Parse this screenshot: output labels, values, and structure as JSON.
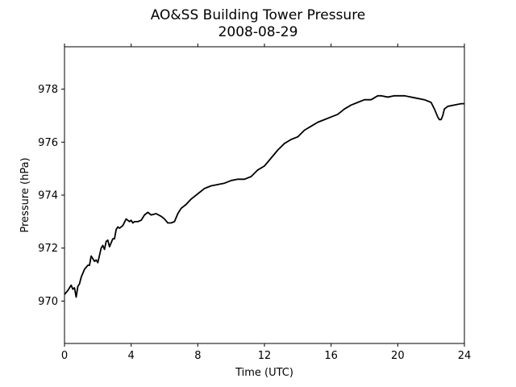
{
  "chart_data": {
    "type": "line",
    "title": "AO&SS Building Tower Pressure",
    "subtitle": "2008-08-29",
    "xlabel": "Time (UTC)",
    "ylabel": "Pressure (hPa)",
    "xlim": [
      0,
      24
    ],
    "ylim": [
      968.4,
      979.6
    ],
    "xticks": [
      0,
      4,
      8,
      12,
      16,
      20,
      24
    ],
    "yticks": [
      970,
      972,
      974,
      976,
      978
    ],
    "grid": false,
    "line_color": "#000000",
    "series": [
      {
        "x": [
          0.0,
          0.2,
          0.4,
          0.5,
          0.6,
          0.7,
          0.8,
          0.9,
          1.0,
          1.2,
          1.4,
          1.5,
          1.6,
          1.8,
          1.9,
          2.0,
          2.2,
          2.3,
          2.4,
          2.5,
          2.6,
          2.7,
          2.8,
          2.9,
          3.0,
          3.1,
          3.2,
          3.3,
          3.5,
          3.7,
          3.9,
          4.0,
          4.1,
          4.2,
          4.4,
          4.6,
          4.8,
          5.0,
          5.2,
          5.5,
          5.8,
          6.0,
          6.2,
          6.4,
          6.6,
          6.8,
          7.0,
          7.3,
          7.6,
          8.0,
          8.4,
          8.8,
          9.2,
          9.6,
          10.0,
          10.4,
          10.8,
          11.2,
          11.6,
          12.0,
          12.4,
          12.8,
          13.2,
          13.6,
          14.0,
          14.4,
          14.8,
          15.2,
          15.6,
          16.0,
          16.4,
          16.8,
          17.2,
          17.6,
          18.0,
          18.4,
          18.8,
          19.0,
          19.4,
          19.8,
          20.0,
          20.4,
          20.8,
          21.2,
          21.6,
          22.0,
          22.2,
          22.4,
          22.5,
          22.6,
          22.7,
          22.8,
          23.0,
          23.4,
          23.8,
          24.0
        ],
        "y": [
          970.25,
          970.4,
          970.6,
          970.45,
          970.5,
          970.15,
          970.55,
          970.65,
          970.9,
          971.2,
          971.35,
          971.35,
          971.7,
          971.5,
          971.55,
          971.45,
          972.0,
          972.1,
          971.95,
          972.25,
          972.3,
          972.05,
          972.2,
          972.35,
          972.35,
          972.7,
          972.8,
          972.75,
          972.85,
          973.1,
          973.0,
          973.05,
          972.95,
          973.0,
          973.0,
          973.05,
          973.25,
          973.35,
          973.25,
          973.3,
          973.2,
          973.1,
          972.95,
          972.95,
          973.0,
          973.3,
          973.5,
          973.65,
          973.85,
          974.05,
          974.25,
          974.35,
          974.4,
          974.45,
          974.55,
          974.6,
          974.6,
          974.7,
          974.95,
          975.1,
          975.4,
          975.7,
          975.95,
          976.1,
          976.2,
          976.45,
          976.6,
          976.75,
          976.85,
          976.95,
          977.05,
          977.25,
          977.4,
          977.5,
          977.6,
          977.6,
          977.75,
          977.75,
          977.7,
          977.75,
          977.75,
          977.75,
          977.7,
          977.65,
          977.6,
          977.5,
          977.25,
          976.95,
          976.85,
          976.85,
          977.0,
          977.25,
          977.35,
          977.4,
          977.45,
          977.45
        ]
      }
    ]
  }
}
